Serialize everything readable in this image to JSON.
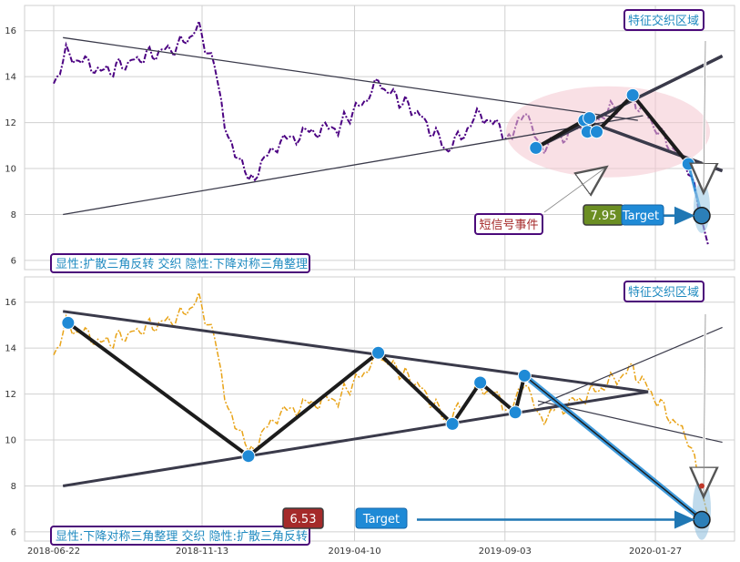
{
  "chart_data": [
    {
      "type": "line",
      "panel": "top",
      "ylim": [
        5.6,
        17.1
      ],
      "yticks": [
        6,
        8,
        10,
        12,
        14,
        16
      ],
      "price_color": "#4b0082",
      "price_style": "dash-dot",
      "region_label": "特征交织区域",
      "caption": "显性:扩散三角反转 交织 隐性:下降对称三角整理",
      "event_label": "短信号事件",
      "target_label": "Target",
      "target_value": "7.95",
      "target_value_color": "#6b8e23",
      "pivots": [
        {
          "date": "2019-10-03",
          "value": 10.9
        },
        {
          "date": "2019-11-19",
          "value": 12.1
        },
        {
          "date": "2019-11-22",
          "value": 11.6
        },
        {
          "date": "2019-11-24",
          "value": 12.2
        },
        {
          "date": "2019-12-01",
          "value": 11.6
        },
        {
          "date": "2020-01-05",
          "value": 13.2
        },
        {
          "date": "2020-02-28",
          "value": 10.2
        },
        {
          "date": "2020-03-12",
          "value": 7.95
        }
      ]
    },
    {
      "type": "line",
      "panel": "bottom",
      "ylim": [
        5.6,
        17.1
      ],
      "yticks": [
        6,
        8,
        10,
        12,
        14,
        16
      ],
      "price_color": "#e8a317",
      "price_style": "dash-dot",
      "region_label": "特征交织区域",
      "caption": "显性:下降对称三角整理 交织 隐性:扩散三角反转",
      "target_label": "Target",
      "target_value": "6.53",
      "target_value_color": "#a52a2a",
      "pivots": [
        {
          "date": "2018-07-06",
          "value": 15.1
        },
        {
          "date": "2018-12-28",
          "value": 9.3
        },
        {
          "date": "2019-05-03",
          "value": 13.8
        },
        {
          "date": "2019-07-14",
          "value": 10.7
        },
        {
          "date": "2019-08-10",
          "value": 12.5
        },
        {
          "date": "2019-09-13",
          "value": 11.2
        },
        {
          "date": "2019-09-22",
          "value": 12.8
        },
        {
          "date": "2020-03-12",
          "value": 6.53
        }
      ]
    }
  ],
  "x_axis": {
    "ticks": [
      "2018-06-22",
      "2018-11-13",
      "2019-04-10",
      "2019-09-03",
      "2020-01-27"
    ]
  }
}
